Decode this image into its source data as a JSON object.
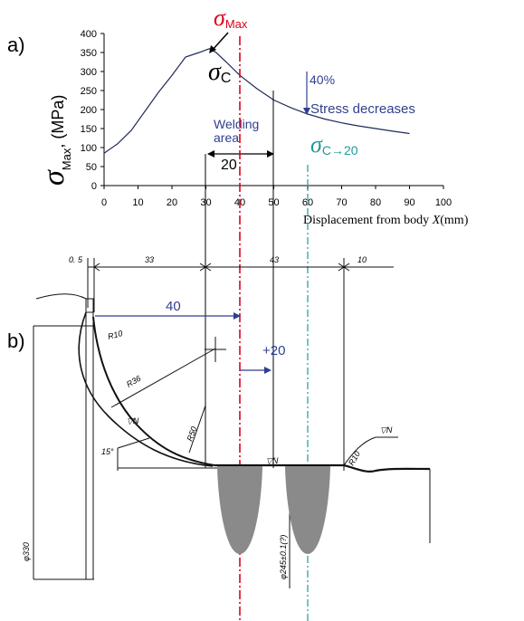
{
  "panel_labels": {
    "a": "a)",
    "b": "b)"
  },
  "colors": {
    "curve": "#1f2a5a",
    "sigma_max": "#e0001b",
    "annotation_blue": "#2f3f8f",
    "sigma_c20": "#1f9a9a",
    "weld_fill": "#8a8a8a"
  },
  "annotations": {
    "sigma_max_symbol": "σ",
    "sigma_max_sub": "Max",
    "sigma_c_symbol": "σ",
    "sigma_c_sub": "C",
    "sigma_c20_symbol": "σ",
    "sigma_c20_sub": "C→20",
    "decrease_pct": "40%",
    "stress_decreases": "Stress decreases",
    "welding_line1": "Welding",
    "welding_line2": "area",
    "welding_width": "20",
    "offset_40": "40",
    "offset_plus20": "+20"
  },
  "chart_data": {
    "type": "line",
    "ylabel_symbol": "σ",
    "ylabel_sub": "Max",
    "ylabel_rest": ", (MPa)",
    "xlabel": "Displacement from body X(mm)",
    "xlabel_pre": "Displacement from body ",
    "xlabel_var": "X",
    "xlabel_unit": "(mm)",
    "xlim": [
      0,
      100
    ],
    "ylim": [
      0,
      400
    ],
    "xticks": [
      0,
      10,
      20,
      30,
      40,
      50,
      60,
      70,
      80,
      90,
      100
    ],
    "yticks": [
      0,
      50,
      100,
      150,
      200,
      250,
      300,
      350,
      400
    ],
    "grid": false,
    "series": [
      {
        "x": [
          0,
          4,
          8,
          12,
          16,
          20,
          24,
          28,
          31,
          33,
          36,
          40,
          45,
          50,
          55,
          60,
          65,
          70,
          75,
          80,
          85,
          90
        ],
        "y": [
          85,
          110,
          145,
          195,
          245,
          290,
          338,
          350,
          360,
          350,
          325,
          290,
          255,
          225,
          205,
          188,
          175,
          165,
          157,
          150,
          143,
          137
        ]
      }
    ],
    "markers": {
      "sigma_max_x": 40,
      "sigma_c20_x": 60,
      "welding_from_x": 30,
      "welding_to_x": 50
    }
  },
  "drawing": {
    "dims_top": [
      "0. 5",
      "33",
      "43",
      "10"
    ],
    "radii": [
      "R10",
      "R36",
      "R50",
      "R10"
    ],
    "angle": "15°",
    "diameter_left": "φ330",
    "diameter_center": "φ245±0.1(?)",
    "surface_marks": [
      "▽N",
      "▽N",
      "▽N"
    ]
  }
}
